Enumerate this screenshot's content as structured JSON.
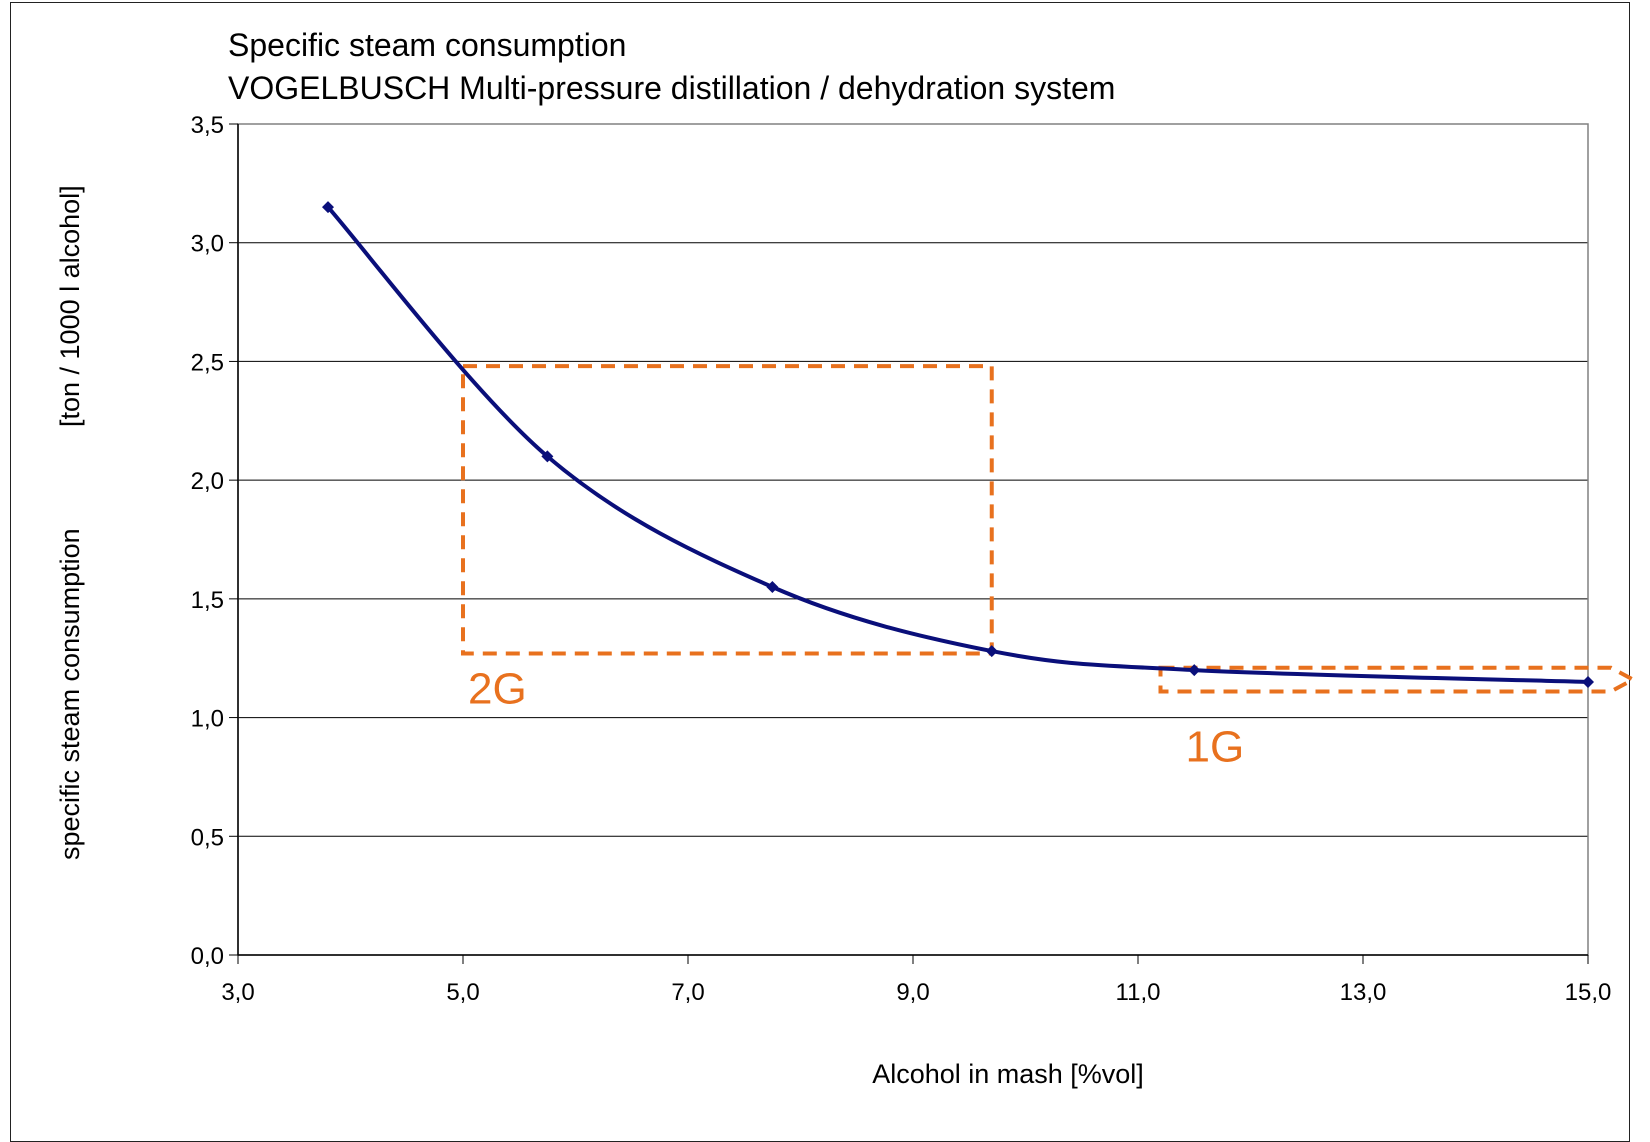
{
  "chart_data": {
    "type": "line",
    "title_line1": "Specific steam consumption",
    "title_line2": "VOGELBUSCH Multi-pressure distillation / dehydration system",
    "xlabel": "Alcohol in mash [%vol]",
    "ylabel_part1": "specific steam consumption",
    "ylabel_part2": "[ton / 1000 l alcohol]",
    "xlim": [
      3.0,
      15.0
    ],
    "ylim": [
      0.0,
      3.5
    ],
    "x_ticks": [
      3.0,
      5.0,
      7.0,
      9.0,
      11.0,
      13.0,
      15.0
    ],
    "x_tick_labels": [
      "3,0",
      "5,0",
      "7,0",
      "9,0",
      "11,0",
      "13,0",
      "15,0"
    ],
    "y_ticks": [
      0.0,
      0.5,
      1.0,
      1.5,
      2.0,
      2.5,
      3.0,
      3.5
    ],
    "y_tick_labels": [
      "0,0",
      "0,5",
      "1,0",
      "1,5",
      "2,0",
      "2,5",
      "3,0",
      "3,5"
    ],
    "grid": "horizontal",
    "series": [
      {
        "color": "#0a0f7a",
        "marker": "diamond",
        "smooth": true,
        "x": [
          3.8,
          5.75,
          7.75,
          9.7,
          11.5,
          15.0
        ],
        "y": [
          3.15,
          2.1,
          1.55,
          1.28,
          1.2,
          1.15
        ]
      }
    ],
    "annotations": [
      {
        "label": "2G",
        "color": "#e8711e",
        "shape": "dashed-rectangle",
        "x_range": [
          5.0,
          9.7
        ],
        "y_range": [
          1.27,
          2.48
        ]
      },
      {
        "label": "1G",
        "color": "#e8711e",
        "shape": "dashed-arrow",
        "x_range": [
          11.2,
          15.4
        ],
        "y_range": [
          1.11,
          1.21
        ]
      }
    ]
  }
}
